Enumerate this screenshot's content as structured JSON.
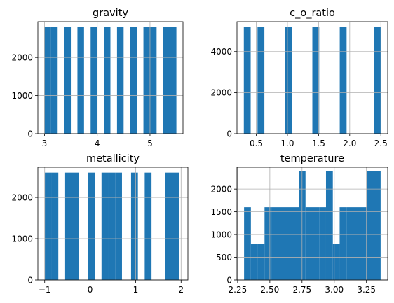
{
  "figure": {
    "bar_color": "#1f77b4",
    "grid_color": "#b0b0b0",
    "grid": true
  },
  "chart_data": [
    {
      "type": "bar",
      "title": "gravity",
      "xlabel": "",
      "ylabel": "",
      "xlim": [
        2.875,
        5.625
      ],
      "ylim": [
        0,
        2940
      ],
      "xticks": [
        3,
        4,
        5
      ],
      "xtick_labels": [
        "3",
        "4",
        "5"
      ],
      "yticks": [
        0,
        1000,
        2000
      ],
      "ytick_labels": [
        "0",
        "1000",
        "2000"
      ],
      "bins": [
        {
          "x0": 3.0,
          "x1": 3.125,
          "count": 2800
        },
        {
          "x0": 3.125,
          "x1": 3.25,
          "count": 2800
        },
        {
          "x0": 3.375,
          "x1": 3.5,
          "count": 2800
        },
        {
          "x0": 3.625,
          "x1": 3.75,
          "count": 2800
        },
        {
          "x0": 3.875,
          "x1": 4.0,
          "count": 2800
        },
        {
          "x0": 4.125,
          "x1": 4.25,
          "count": 2800
        },
        {
          "x0": 4.375,
          "x1": 4.5,
          "count": 2800
        },
        {
          "x0": 4.625,
          "x1": 4.75,
          "count": 2800
        },
        {
          "x0": 4.875,
          "x1": 5.0,
          "count": 2800
        },
        {
          "x0": 5.0,
          "x1": 5.125,
          "count": 2800
        },
        {
          "x0": 5.25,
          "x1": 5.375,
          "count": 2800
        },
        {
          "x0": 5.375,
          "x1": 5.5,
          "count": 2800
        }
      ]
    },
    {
      "type": "bar",
      "title": "c_o_ratio",
      "xlabel": "",
      "ylabel": "",
      "xlim": [
        0.19,
        2.61
      ],
      "ylim": [
        0,
        5460
      ],
      "xticks": [
        0.5,
        1.0,
        1.5,
        2.0,
        2.5
      ],
      "xtick_labels": [
        "0.5",
        "1.0",
        "1.5",
        "2.0",
        "2.5"
      ],
      "yticks": [
        0,
        2000,
        4000
      ],
      "ytick_labels": [
        "0",
        "2000",
        "4000"
      ],
      "bins": [
        {
          "x0": 0.3,
          "x1": 0.41,
          "count": 5200
        },
        {
          "x0": 0.52,
          "x1": 0.63,
          "count": 5200
        },
        {
          "x0": 0.96,
          "x1": 1.07,
          "count": 5200
        },
        {
          "x0": 1.4,
          "x1": 1.51,
          "count": 5200
        },
        {
          "x0": 1.84,
          "x1": 1.95,
          "count": 5200
        },
        {
          "x0": 2.39,
          "x1": 2.5,
          "count": 5200
        }
      ]
    },
    {
      "type": "bar",
      "title": "metallicity",
      "xlabel": "",
      "ylabel": "",
      "xlim": [
        -1.15,
        2.15
      ],
      "ylim": [
        0,
        2730
      ],
      "xticks": [
        -1,
        0,
        1,
        2
      ],
      "xtick_labels": [
        "−1",
        "0",
        "1",
        "2"
      ],
      "yticks": [
        0,
        1000,
        2000
      ],
      "ytick_labels": [
        "0",
        "1000",
        "2000"
      ],
      "bins": [
        {
          "x0": -1.0,
          "x1": -0.85,
          "count": 2600
        },
        {
          "x0": -0.85,
          "x1": -0.7,
          "count": 2600
        },
        {
          "x0": -0.55,
          "x1": -0.4,
          "count": 2600
        },
        {
          "x0": -0.4,
          "x1": -0.25,
          "count": 2600
        },
        {
          "x0": -0.05,
          "x1": 0.1,
          "count": 2600
        },
        {
          "x0": 0.25,
          "x1": 0.4,
          "count": 2600
        },
        {
          "x0": 0.4,
          "x1": 0.55,
          "count": 2600
        },
        {
          "x0": 0.55,
          "x1": 0.7,
          "count": 2600
        },
        {
          "x0": 0.9,
          "x1": 1.05,
          "count": 2600
        },
        {
          "x0": 1.2,
          "x1": 1.35,
          "count": 2600
        },
        {
          "x0": 1.65,
          "x1": 1.8,
          "count": 2600
        },
        {
          "x0": 1.8,
          "x1": 1.95,
          "count": 2600
        }
      ]
    },
    {
      "type": "bar",
      "title": "temperature",
      "xlabel": "",
      "ylabel": "",
      "xlim": [
        2.245,
        3.415
      ],
      "ylim": [
        0,
        2480
      ],
      "xticks": [
        2.25,
        2.5,
        2.75,
        3.0,
        3.25
      ],
      "xtick_labels": [
        "2.25",
        "2.50",
        "2.75",
        "3.00",
        "3.25"
      ],
      "yticks": [
        0,
        500,
        1000,
        1500,
        2000
      ],
      "ytick_labels": [
        "0",
        "500",
        "1000",
        "1500",
        "2000"
      ],
      "bins": [
        {
          "x0": 2.3,
          "x1": 2.353,
          "count": 1600
        },
        {
          "x0": 2.353,
          "x1": 2.406,
          "count": 800
        },
        {
          "x0": 2.406,
          "x1": 2.459,
          "count": 800
        },
        {
          "x0": 2.459,
          "x1": 2.512,
          "count": 1600
        },
        {
          "x0": 2.512,
          "x1": 2.565,
          "count": 1600
        },
        {
          "x0": 2.565,
          "x1": 2.618,
          "count": 1600
        },
        {
          "x0": 2.618,
          "x1": 2.671,
          "count": 1600
        },
        {
          "x0": 2.671,
          "x1": 2.724,
          "count": 1600
        },
        {
          "x0": 2.724,
          "x1": 2.777,
          "count": 2400
        },
        {
          "x0": 2.777,
          "x1": 2.83,
          "count": 1600
        },
        {
          "x0": 2.83,
          "x1": 2.883,
          "count": 1600
        },
        {
          "x0": 2.883,
          "x1": 2.936,
          "count": 1600
        },
        {
          "x0": 2.936,
          "x1": 2.989,
          "count": 2400
        },
        {
          "x0": 2.989,
          "x1": 3.042,
          "count": 800
        },
        {
          "x0": 3.042,
          "x1": 3.095,
          "count": 1600
        },
        {
          "x0": 3.095,
          "x1": 3.148,
          "count": 1600
        },
        {
          "x0": 3.148,
          "x1": 3.201,
          "count": 1600
        },
        {
          "x0": 3.201,
          "x1": 3.254,
          "count": 1600
        },
        {
          "x0": 3.254,
          "x1": 3.307,
          "count": 2400
        },
        {
          "x0": 3.307,
          "x1": 3.36,
          "count": 2400
        }
      ]
    }
  ]
}
